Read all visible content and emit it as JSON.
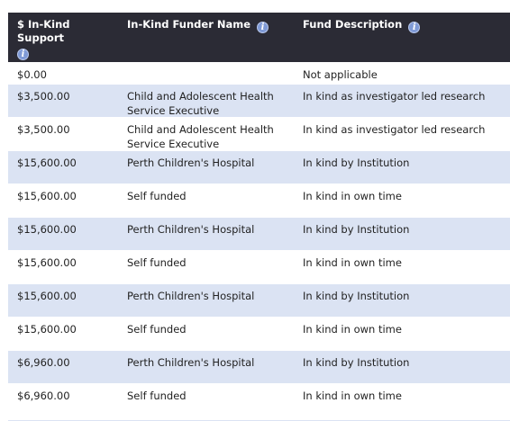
{
  "table": {
    "headers": {
      "amount": "$ In-Kind Support",
      "funder": "In-Kind Funder Name",
      "description": "Fund Description",
      "info_glyph": "i"
    },
    "rows": [
      {
        "amount": "$0.00",
        "funder": "",
        "description": "Not applicable"
      },
      {
        "amount": "$3,500.00",
        "funder": "Child and Adolescent Health Service Executive",
        "description": "In kind as investigator led research"
      },
      {
        "amount": "$3,500.00",
        "funder": "Child and Adolescent Health Service Executive",
        "description": "In kind as investigator led research"
      },
      {
        "amount": "$15,600.00",
        "funder": "Perth Children's Hospital",
        "description": "In kind by Institution"
      },
      {
        "amount": "$15,600.00",
        "funder": "Self funded",
        "description": "In kind in own time"
      },
      {
        "amount": "$15,600.00",
        "funder": "Perth Children's Hospital",
        "description": "In kind by Institution"
      },
      {
        "amount": "$15,600.00",
        "funder": "Self funded",
        "description": "In kind in own time"
      },
      {
        "amount": "$15,600.00",
        "funder": "Perth Children's Hospital",
        "description": "In kind by Institution"
      },
      {
        "amount": "$15,600.00",
        "funder": "Self funded",
        "description": "In kind in own time"
      },
      {
        "amount": "$6,960.00",
        "funder": "Perth Children's Hospital",
        "description": "In kind by Institution"
      },
      {
        "amount": "$6,960.00",
        "funder": "Self funded",
        "description": "In kind in own time"
      }
    ]
  },
  "colors": {
    "header_bg": "#2b2b35",
    "alt_row_bg": "#dbe3f3",
    "info_icon_bg": "#7f9ad6"
  }
}
